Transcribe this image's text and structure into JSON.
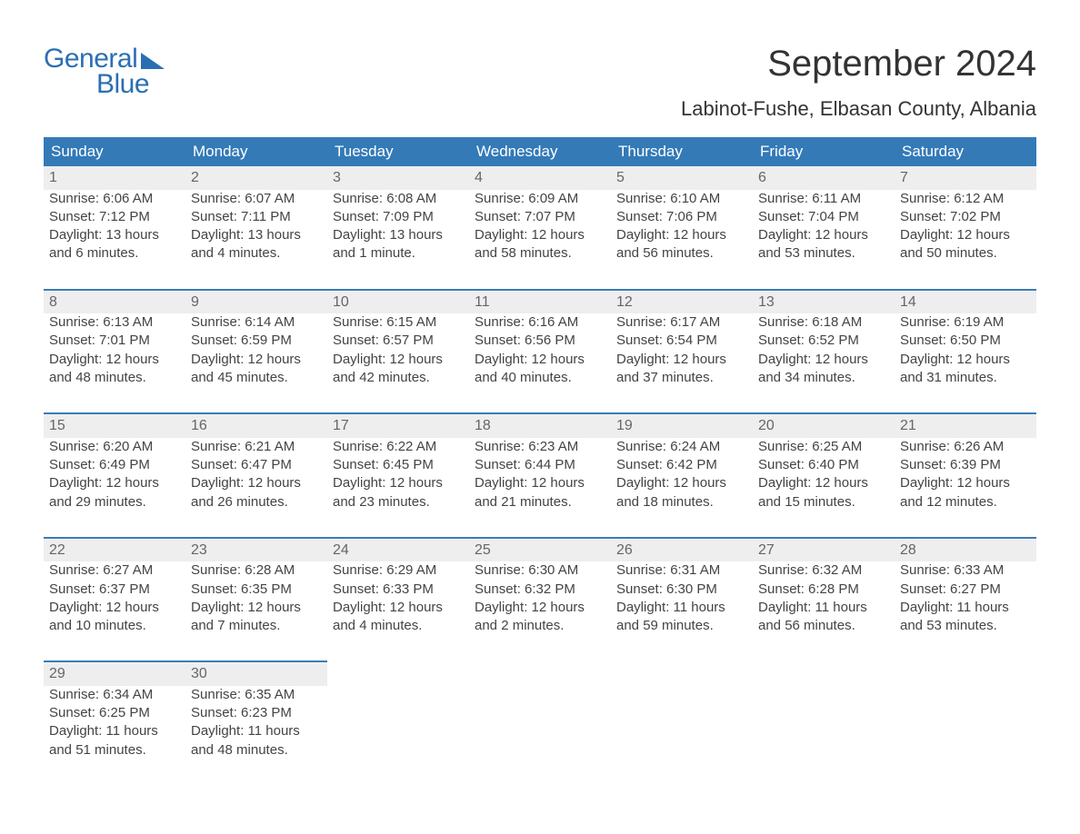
{
  "logo": {
    "top": "General",
    "bottom": "Blue"
  },
  "title": "September 2024",
  "location": "Labinot-Fushe, Elbasan County, Albania",
  "colors": {
    "header_bg": "#337ab7",
    "header_text": "#ffffff",
    "daynum_bg": "#eeeeee",
    "daynum_text": "#666666",
    "row_border": "#3a7db8",
    "body_text": "#444444",
    "logo_color": "#2b6fb3"
  },
  "typography": {
    "title_fontsize": 40,
    "location_fontsize": 22,
    "header_fontsize": 17,
    "cell_fontsize": 15,
    "logo_fontsize": 30
  },
  "day_headers": [
    "Sunday",
    "Monday",
    "Tuesday",
    "Wednesday",
    "Thursday",
    "Friday",
    "Saturday"
  ],
  "weeks": [
    [
      {
        "num": "1",
        "sunrise": "Sunrise: 6:06 AM",
        "sunset": "Sunset: 7:12 PM",
        "dl1": "Daylight: 13 hours",
        "dl2": "and 6 minutes."
      },
      {
        "num": "2",
        "sunrise": "Sunrise: 6:07 AM",
        "sunset": "Sunset: 7:11 PM",
        "dl1": "Daylight: 13 hours",
        "dl2": "and 4 minutes."
      },
      {
        "num": "3",
        "sunrise": "Sunrise: 6:08 AM",
        "sunset": "Sunset: 7:09 PM",
        "dl1": "Daylight: 13 hours",
        "dl2": "and 1 minute."
      },
      {
        "num": "4",
        "sunrise": "Sunrise: 6:09 AM",
        "sunset": "Sunset: 7:07 PM",
        "dl1": "Daylight: 12 hours",
        "dl2": "and 58 minutes."
      },
      {
        "num": "5",
        "sunrise": "Sunrise: 6:10 AM",
        "sunset": "Sunset: 7:06 PM",
        "dl1": "Daylight: 12 hours",
        "dl2": "and 56 minutes."
      },
      {
        "num": "6",
        "sunrise": "Sunrise: 6:11 AM",
        "sunset": "Sunset: 7:04 PM",
        "dl1": "Daylight: 12 hours",
        "dl2": "and 53 minutes."
      },
      {
        "num": "7",
        "sunrise": "Sunrise: 6:12 AM",
        "sunset": "Sunset: 7:02 PM",
        "dl1": "Daylight: 12 hours",
        "dl2": "and 50 minutes."
      }
    ],
    [
      {
        "num": "8",
        "sunrise": "Sunrise: 6:13 AM",
        "sunset": "Sunset: 7:01 PM",
        "dl1": "Daylight: 12 hours",
        "dl2": "and 48 minutes."
      },
      {
        "num": "9",
        "sunrise": "Sunrise: 6:14 AM",
        "sunset": "Sunset: 6:59 PM",
        "dl1": "Daylight: 12 hours",
        "dl2": "and 45 minutes."
      },
      {
        "num": "10",
        "sunrise": "Sunrise: 6:15 AM",
        "sunset": "Sunset: 6:57 PM",
        "dl1": "Daylight: 12 hours",
        "dl2": "and 42 minutes."
      },
      {
        "num": "11",
        "sunrise": "Sunrise: 6:16 AM",
        "sunset": "Sunset: 6:56 PM",
        "dl1": "Daylight: 12 hours",
        "dl2": "and 40 minutes."
      },
      {
        "num": "12",
        "sunrise": "Sunrise: 6:17 AM",
        "sunset": "Sunset: 6:54 PM",
        "dl1": "Daylight: 12 hours",
        "dl2": "and 37 minutes."
      },
      {
        "num": "13",
        "sunrise": "Sunrise: 6:18 AM",
        "sunset": "Sunset: 6:52 PM",
        "dl1": "Daylight: 12 hours",
        "dl2": "and 34 minutes."
      },
      {
        "num": "14",
        "sunrise": "Sunrise: 6:19 AM",
        "sunset": "Sunset: 6:50 PM",
        "dl1": "Daylight: 12 hours",
        "dl2": "and 31 minutes."
      }
    ],
    [
      {
        "num": "15",
        "sunrise": "Sunrise: 6:20 AM",
        "sunset": "Sunset: 6:49 PM",
        "dl1": "Daylight: 12 hours",
        "dl2": "and 29 minutes."
      },
      {
        "num": "16",
        "sunrise": "Sunrise: 6:21 AM",
        "sunset": "Sunset: 6:47 PM",
        "dl1": "Daylight: 12 hours",
        "dl2": "and 26 minutes."
      },
      {
        "num": "17",
        "sunrise": "Sunrise: 6:22 AM",
        "sunset": "Sunset: 6:45 PM",
        "dl1": "Daylight: 12 hours",
        "dl2": "and 23 minutes."
      },
      {
        "num": "18",
        "sunrise": "Sunrise: 6:23 AM",
        "sunset": "Sunset: 6:44 PM",
        "dl1": "Daylight: 12 hours",
        "dl2": "and 21 minutes."
      },
      {
        "num": "19",
        "sunrise": "Sunrise: 6:24 AM",
        "sunset": "Sunset: 6:42 PM",
        "dl1": "Daylight: 12 hours",
        "dl2": "and 18 minutes."
      },
      {
        "num": "20",
        "sunrise": "Sunrise: 6:25 AM",
        "sunset": "Sunset: 6:40 PM",
        "dl1": "Daylight: 12 hours",
        "dl2": "and 15 minutes."
      },
      {
        "num": "21",
        "sunrise": "Sunrise: 6:26 AM",
        "sunset": "Sunset: 6:39 PM",
        "dl1": "Daylight: 12 hours",
        "dl2": "and 12 minutes."
      }
    ],
    [
      {
        "num": "22",
        "sunrise": "Sunrise: 6:27 AM",
        "sunset": "Sunset: 6:37 PM",
        "dl1": "Daylight: 12 hours",
        "dl2": "and 10 minutes."
      },
      {
        "num": "23",
        "sunrise": "Sunrise: 6:28 AM",
        "sunset": "Sunset: 6:35 PM",
        "dl1": "Daylight: 12 hours",
        "dl2": "and 7 minutes."
      },
      {
        "num": "24",
        "sunrise": "Sunrise: 6:29 AM",
        "sunset": "Sunset: 6:33 PM",
        "dl1": "Daylight: 12 hours",
        "dl2": "and 4 minutes."
      },
      {
        "num": "25",
        "sunrise": "Sunrise: 6:30 AM",
        "sunset": "Sunset: 6:32 PM",
        "dl1": "Daylight: 12 hours",
        "dl2": "and 2 minutes."
      },
      {
        "num": "26",
        "sunrise": "Sunrise: 6:31 AM",
        "sunset": "Sunset: 6:30 PM",
        "dl1": "Daylight: 11 hours",
        "dl2": "and 59 minutes."
      },
      {
        "num": "27",
        "sunrise": "Sunrise: 6:32 AM",
        "sunset": "Sunset: 6:28 PM",
        "dl1": "Daylight: 11 hours",
        "dl2": "and 56 minutes."
      },
      {
        "num": "28",
        "sunrise": "Sunrise: 6:33 AM",
        "sunset": "Sunset: 6:27 PM",
        "dl1": "Daylight: 11 hours",
        "dl2": "and 53 minutes."
      }
    ],
    [
      {
        "num": "29",
        "sunrise": "Sunrise: 6:34 AM",
        "sunset": "Sunset: 6:25 PM",
        "dl1": "Daylight: 11 hours",
        "dl2": "and 51 minutes."
      },
      {
        "num": "30",
        "sunrise": "Sunrise: 6:35 AM",
        "sunset": "Sunset: 6:23 PM",
        "dl1": "Daylight: 11 hours",
        "dl2": "and 48 minutes."
      },
      null,
      null,
      null,
      null,
      null
    ]
  ]
}
